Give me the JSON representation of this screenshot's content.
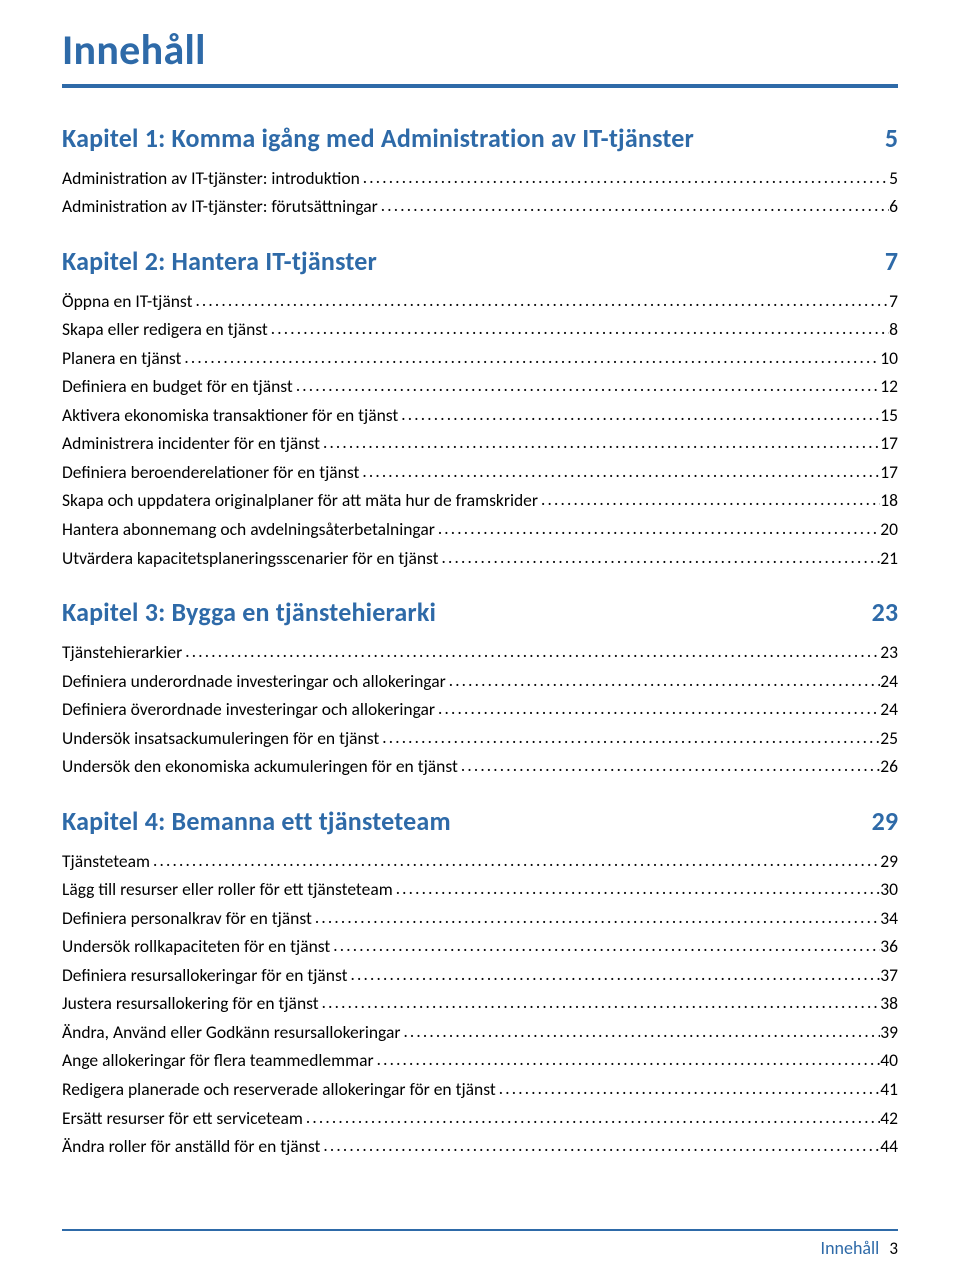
{
  "colors": {
    "accent": "#2e6aa8",
    "text": "#000000",
    "background": "#ffffff"
  },
  "typography": {
    "title_fontsize_pt": 32,
    "chapter_fontsize_pt": 20,
    "entry_fontsize_pt": 13,
    "title_weight": 700,
    "chapter_weight": 700,
    "entry_weight": 400,
    "font_family": "Segoe UI / Calibri"
  },
  "title": "Innehåll",
  "chapters": [
    {
      "heading": "Kapitel 1: Komma igång med Administration av IT-tjänster",
      "page": "5",
      "entries": [
        {
          "label": "Administration av IT-tjänster: introduktion",
          "page": "5"
        },
        {
          "label": "Administration av IT-tjänster: förutsättningar",
          "page": "6"
        }
      ]
    },
    {
      "heading": "Kapitel 2: Hantera IT-tjänster",
      "page": "7",
      "entries": [
        {
          "label": "Öppna en IT-tjänst",
          "page": "7"
        },
        {
          "label": "Skapa eller redigera en tjänst",
          "page": "8"
        },
        {
          "label": "Planera en tjänst",
          "page": "10"
        },
        {
          "label": "Definiera en budget för en tjänst",
          "page": "12"
        },
        {
          "label": "Aktivera ekonomiska transaktioner för en tjänst",
          "page": "15"
        },
        {
          "label": "Administrera incidenter för en tjänst",
          "page": "17"
        },
        {
          "label": "Definiera beroenderelationer för en tjänst",
          "page": "17"
        },
        {
          "label": "Skapa och uppdatera originalplaner för att mäta hur de framskrider",
          "page": "18"
        },
        {
          "label": "Hantera abonnemang och avdelningsåterbetalningar",
          "page": "20"
        },
        {
          "label": "Utvärdera kapacitetsplaneringsscenarier för en tjänst",
          "page": "21"
        }
      ]
    },
    {
      "heading": "Kapitel 3: Bygga en tjänstehierarki",
      "page": "23",
      "entries": [
        {
          "label": "Tjänstehierarkier",
          "page": "23"
        },
        {
          "label": "Definiera underordnade investeringar och allokeringar",
          "page": "24"
        },
        {
          "label": "Definiera överordnade investeringar och allokeringar",
          "page": "24"
        },
        {
          "label": "Undersök insatsackumuleringen för en tjänst",
          "page": "25"
        },
        {
          "label": "Undersök den ekonomiska ackumuleringen för en tjänst",
          "page": "26"
        }
      ]
    },
    {
      "heading": "Kapitel 4: Bemanna ett tjänsteteam",
      "page": "29",
      "entries": [
        {
          "label": "Tjänsteteam",
          "page": "29"
        },
        {
          "label": "Lägg till resurser eller roller för ett tjänsteteam",
          "page": "30"
        },
        {
          "label": "Definiera personalkrav för en tjänst",
          "page": "34"
        },
        {
          "label": "Undersök rollkapaciteten för en tjänst",
          "page": "36"
        },
        {
          "label": "Definiera resursallokeringar för en tjänst",
          "page": "37"
        },
        {
          "label": "Justera resursallokering för en tjänst",
          "page": "38"
        },
        {
          "label": "Ändra, Använd eller Godkänn resursallokeringar",
          "page": "39"
        },
        {
          "label": "Ange allokeringar för flera teammedlemmar",
          "page": "40"
        },
        {
          "label": "Redigera planerade och reserverade allokeringar för en tjänst",
          "page": "41"
        },
        {
          "label": "Ersätt resurser för ett serviceteam",
          "page": "42"
        },
        {
          "label": "Ändra roller för anställd för en tjänst",
          "page": "44"
        }
      ]
    }
  ],
  "footer": {
    "label": "Innehåll",
    "page": "3"
  }
}
